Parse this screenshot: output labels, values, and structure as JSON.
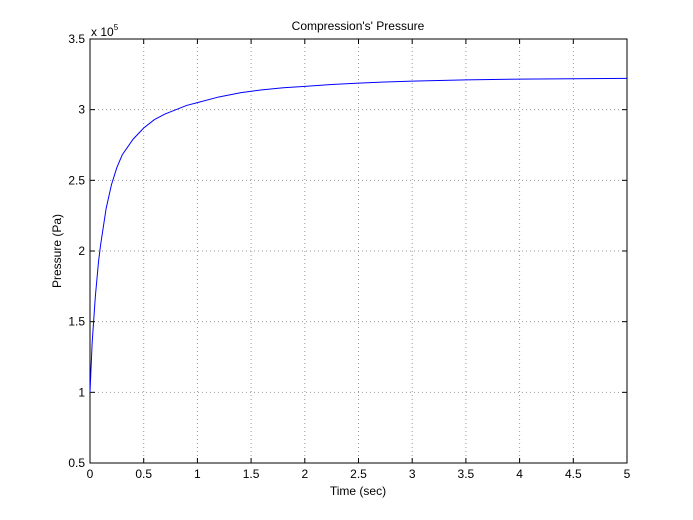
{
  "chart_data": {
    "type": "line",
    "title": "Compression's' Pressure",
    "xlabel": "Time (sec)",
    "ylabel": "Pressure (Pa)",
    "y_multiplier_label": "x 10",
    "y_multiplier_exponent": "5",
    "xlim": [
      0,
      5
    ],
    "ylim": [
      0.5,
      3.5
    ],
    "grid": true,
    "x_ticks": [
      "0",
      "0.5",
      "1",
      "1.5",
      "2",
      "2.5",
      "3",
      "3.5",
      "4",
      "4.5",
      "5"
    ],
    "y_ticks": [
      "0.5",
      "1",
      "1.5",
      "2",
      "2.5",
      "3",
      "3.5"
    ],
    "series": [
      {
        "color": "#0000ff",
        "x": [
          0,
          0.02,
          0.05,
          0.08,
          0.1,
          0.15,
          0.2,
          0.25,
          0.3,
          0.4,
          0.5,
          0.6,
          0.7,
          0.8,
          0.9,
          1.0,
          1.2,
          1.4,
          1.6,
          1.8,
          2.0,
          2.25,
          2.5,
          2.75,
          3.0,
          3.5,
          4.0,
          4.5,
          5.0
        ],
        "y": [
          1.0,
          1.35,
          1.68,
          1.93,
          2.05,
          2.3,
          2.47,
          2.59,
          2.68,
          2.79,
          2.87,
          2.93,
          2.97,
          3.0,
          3.03,
          3.05,
          3.09,
          3.12,
          3.14,
          3.155,
          3.165,
          3.178,
          3.188,
          3.196,
          3.202,
          3.211,
          3.216,
          3.219,
          3.221
        ]
      }
    ]
  }
}
